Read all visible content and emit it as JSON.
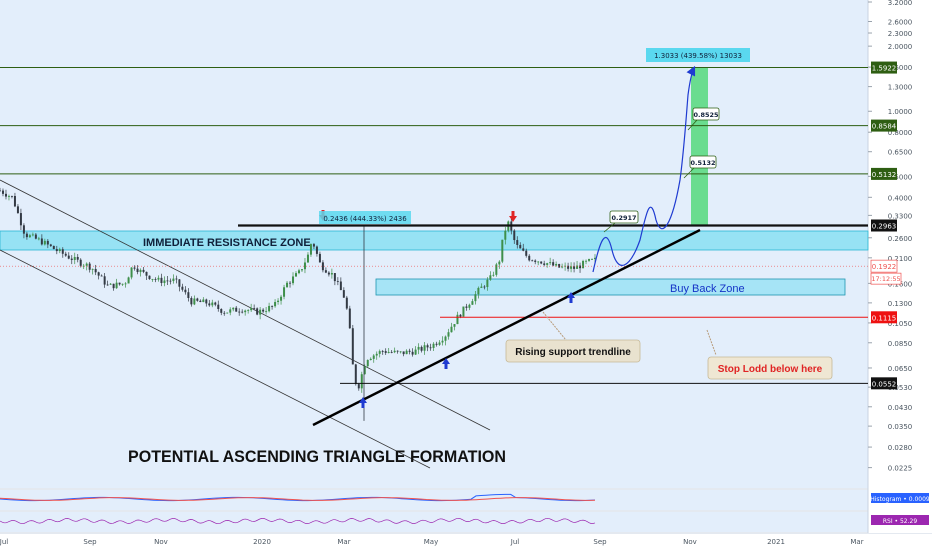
{
  "chart_data": {
    "type": "candlestick",
    "y_scale": "log",
    "ylim": [
      0.0185,
      3.2
    ],
    "y_ticks": [
      {
        "v": 3.2,
        "t": "3.2000"
      },
      {
        "v": 2.6,
        "t": "2.6000"
      },
      {
        "v": 2.3,
        "t": "2.3000"
      },
      {
        "v": 2.0,
        "t": "2.0000"
      },
      {
        "v": 1.6,
        "t": "1.6000"
      },
      {
        "v": 1.3,
        "t": "1.3000"
      },
      {
        "v": 1.0,
        "t": "1.0000"
      },
      {
        "v": 0.8,
        "t": "0.8000"
      },
      {
        "v": 0.65,
        "t": "0.6500"
      },
      {
        "v": 0.5,
        "t": "0.5000"
      },
      {
        "v": 0.4,
        "t": "0.4000"
      },
      {
        "v": 0.33,
        "t": "0.3300"
      },
      {
        "v": 0.26,
        "t": "0.2600"
      },
      {
        "v": 0.21,
        "t": "0.2100"
      },
      {
        "v": 0.16,
        "t": "0.1600"
      },
      {
        "v": 0.13,
        "t": "0.1300"
      },
      {
        "v": 0.105,
        "t": "0.1050"
      },
      {
        "v": 0.085,
        "t": "0.0850"
      },
      {
        "v": 0.065,
        "t": "0.0650"
      },
      {
        "v": 0.053,
        "t": "0.0530"
      },
      {
        "v": 0.043,
        "t": "0.0430"
      },
      {
        "v": 0.035,
        "t": "0.0350"
      },
      {
        "v": 0.028,
        "t": "0.0280"
      },
      {
        "v": 0.0225,
        "t": "0.0225"
      }
    ],
    "x_ticks": [
      "Jul",
      "Sep",
      "Nov",
      "2020",
      "Mar",
      "May",
      "Jul",
      "Sep",
      "Nov",
      "2021",
      "Mar"
    ],
    "price_levels": [
      {
        "value": 1.5922,
        "label": "1.5922",
        "color": "#2e5e12"
      },
      {
        "value": 0.8584,
        "label": "0.8584",
        "color": "#2e5e12"
      },
      {
        "value": 0.5132,
        "label": "0.5132",
        "color": "#2e5e12"
      },
      {
        "value": 0.2963,
        "label": "0.2963",
        "color": "#111111"
      },
      {
        "value": 0.1115,
        "label": "0.1115",
        "color": "#ee1111"
      },
      {
        "value": 0.0552,
        "label": "0.0552",
        "color": "#111111"
      }
    ],
    "current_price": {
      "value": 0.1922,
      "label": "0.1922",
      "countdown": "17:12:55",
      "color": "#ef5350"
    },
    "annotations": {
      "resistance_zone": "IMMEDIATE RESISTANCE ZONE",
      "buy_back_zone": "Buy Back Zone",
      "rising_support": "Rising support trendline",
      "stop_loss": "Stop Lodd below here",
      "triangle": "POTENTIAL ASCENDING TRIANGLE FORMATION",
      "measure_small": "0.2436 (444.33%) 2436",
      "measure_big": "1.3033 (439.58%) 13033",
      "target_1": "0.2917",
      "target_2": "0.5132",
      "target_3": "0.8525"
    },
    "price_path": [
      [
        0.0,
        0.43
      ],
      [
        0.015,
        0.4
      ],
      [
        0.03,
        0.27
      ],
      [
        0.05,
        0.25
      ],
      [
        0.07,
        0.225
      ],
      [
        0.09,
        0.205
      ],
      [
        0.11,
        0.19
      ],
      [
        0.13,
        0.155
      ],
      [
        0.15,
        0.16
      ],
      [
        0.16,
        0.195
      ],
      [
        0.17,
        0.18
      ],
      [
        0.19,
        0.165
      ],
      [
        0.21,
        0.165
      ],
      [
        0.23,
        0.132
      ],
      [
        0.25,
        0.13
      ],
      [
        0.27,
        0.118
      ],
      [
        0.29,
        0.122
      ],
      [
        0.31,
        0.118
      ],
      [
        0.33,
        0.126
      ],
      [
        0.345,
        0.16
      ],
      [
        0.36,
        0.18
      ],
      [
        0.37,
        0.215
      ],
      [
        0.375,
        0.255
      ],
      [
        0.385,
        0.195
      ],
      [
        0.4,
        0.175
      ],
      [
        0.415,
        0.135
      ],
      [
        0.42,
        0.1
      ],
      [
        0.425,
        0.06
      ],
      [
        0.43,
        0.052
      ],
      [
        0.44,
        0.072
      ],
      [
        0.46,
        0.078
      ],
      [
        0.48,
        0.076
      ],
      [
        0.5,
        0.078
      ],
      [
        0.52,
        0.083
      ],
      [
        0.535,
        0.092
      ],
      [
        0.55,
        0.112
      ],
      [
        0.56,
        0.125
      ],
      [
        0.575,
        0.148
      ],
      [
        0.59,
        0.17
      ],
      [
        0.6,
        0.205
      ],
      [
        0.605,
        0.265
      ],
      [
        0.61,
        0.31
      ],
      [
        0.62,
        0.24
      ],
      [
        0.635,
        0.21
      ],
      [
        0.655,
        0.2
      ],
      [
        0.67,
        0.19
      ],
      [
        0.69,
        0.188
      ],
      [
        0.705,
        0.2
      ],
      [
        0.715,
        0.205
      ]
    ],
    "oscillators": [
      {
        "name": "Histogram",
        "value": "0.0009",
        "color": "#2962ff"
      },
      {
        "name": "RSI",
        "value": "52.29",
        "color": "#9c27b0"
      }
    ]
  }
}
